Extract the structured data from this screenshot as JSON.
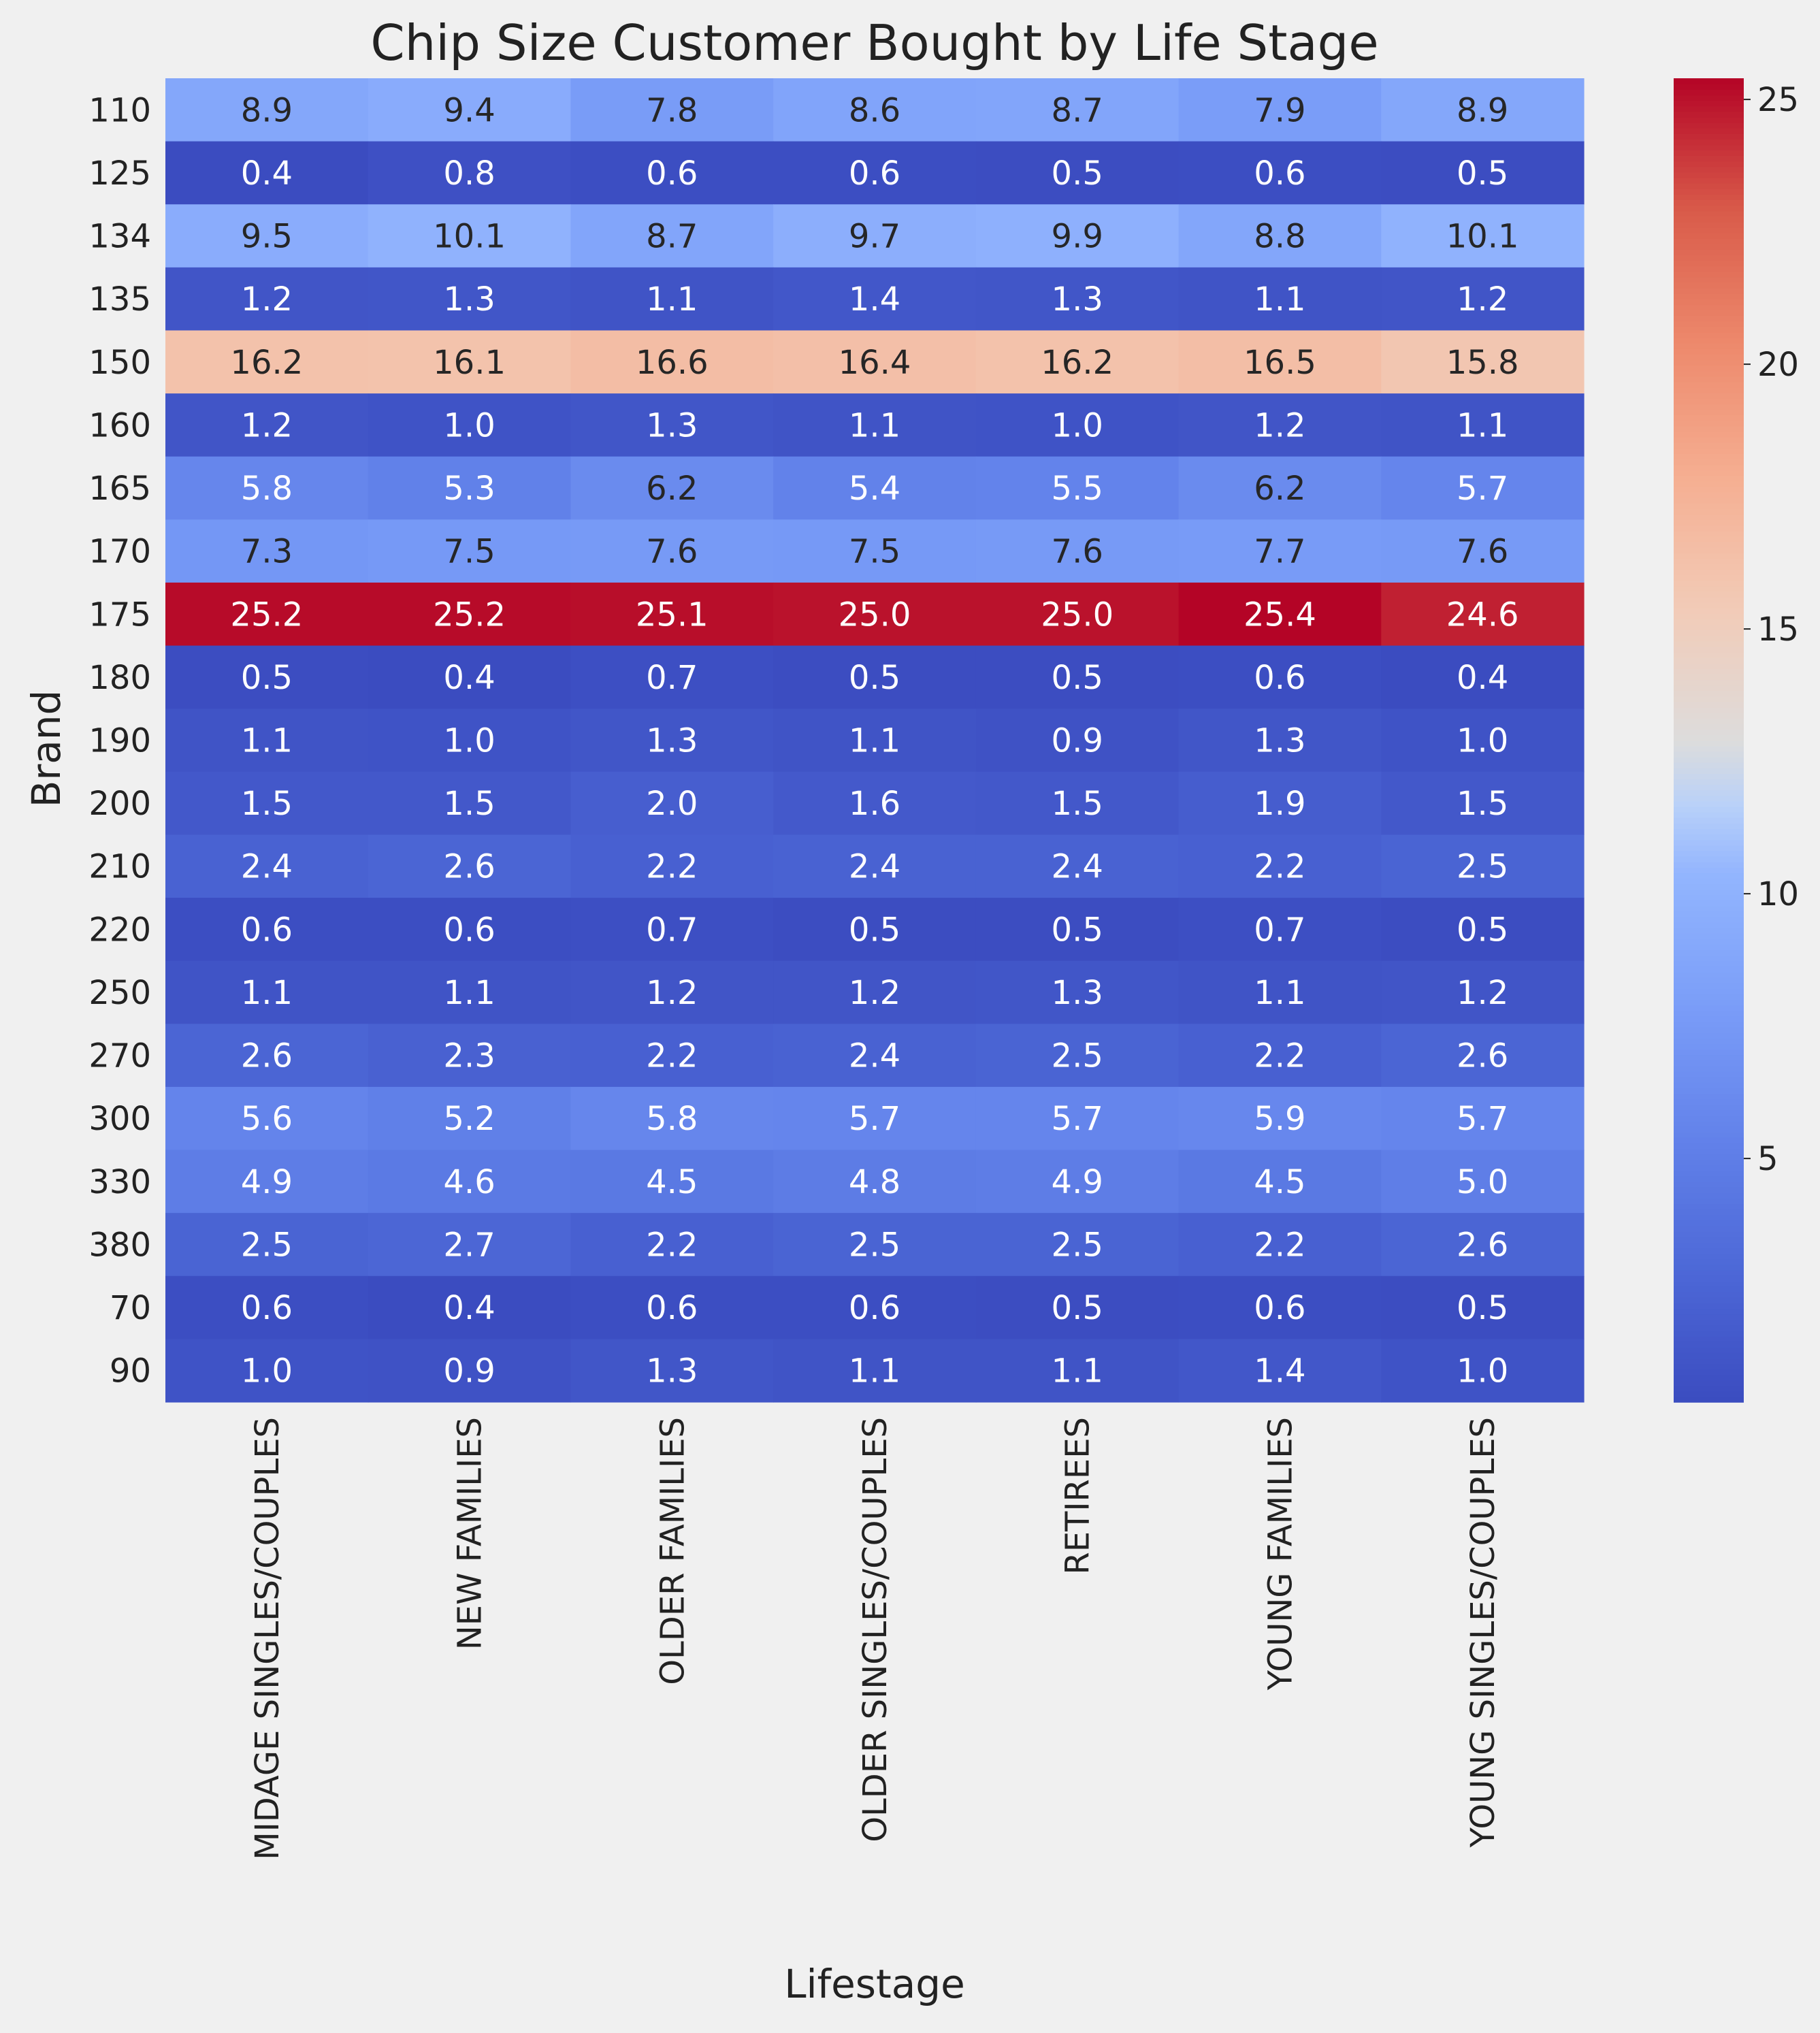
{
  "chart_data": {
    "type": "heatmap",
    "title": "Chip Size Customer Bought by Life Stage",
    "xlabel": "Lifestage",
    "ylabel": "Brand",
    "colormap": "coolwarm",
    "color_range": [
      0.4,
      25.4
    ],
    "colorbar_ticks": [
      5,
      10,
      15,
      20,
      25
    ],
    "grid": false,
    "colorbar_position": "right",
    "x_categories": [
      "MIDAGE SINGLES/COUPLES",
      "NEW FAMILIES",
      "OLDER FAMILIES",
      "OLDER SINGLES/COUPLES",
      "RETIREES",
      "YOUNG FAMILIES",
      "YOUNG SINGLES/COUPLES"
    ],
    "y_categories": [
      "110",
      "125",
      "134",
      "135",
      "150",
      "160",
      "165",
      "170",
      "175",
      "180",
      "190",
      "200",
      "210",
      "220",
      "250",
      "270",
      "300",
      "330",
      "380",
      "70",
      "90"
    ],
    "values": [
      [
        8.9,
        9.4,
        7.8,
        8.6,
        8.7,
        7.9,
        8.9
      ],
      [
        0.4,
        0.8,
        0.6,
        0.6,
        0.5,
        0.6,
        0.5
      ],
      [
        9.5,
        10.1,
        8.7,
        9.7,
        9.9,
        8.8,
        10.1
      ],
      [
        1.2,
        1.3,
        1.1,
        1.4,
        1.3,
        1.1,
        1.2
      ],
      [
        16.2,
        16.1,
        16.6,
        16.4,
        16.2,
        16.5,
        15.8
      ],
      [
        1.2,
        1.0,
        1.3,
        1.1,
        1.0,
        1.2,
        1.1
      ],
      [
        5.8,
        5.3,
        6.2,
        5.4,
        5.5,
        6.2,
        5.7
      ],
      [
        7.3,
        7.5,
        7.6,
        7.5,
        7.6,
        7.7,
        7.6
      ],
      [
        25.2,
        25.2,
        25.1,
        25.0,
        25.0,
        25.4,
        24.6
      ],
      [
        0.5,
        0.4,
        0.7,
        0.5,
        0.5,
        0.6,
        0.4
      ],
      [
        1.1,
        1.0,
        1.3,
        1.1,
        0.9,
        1.3,
        1.0
      ],
      [
        1.5,
        1.5,
        2.0,
        1.6,
        1.5,
        1.9,
        1.5
      ],
      [
        2.4,
        2.6,
        2.2,
        2.4,
        2.4,
        2.2,
        2.5
      ],
      [
        0.6,
        0.6,
        0.7,
        0.5,
        0.5,
        0.7,
        0.5
      ],
      [
        1.1,
        1.1,
        1.2,
        1.2,
        1.3,
        1.1,
        1.2
      ],
      [
        2.6,
        2.3,
        2.2,
        2.4,
        2.5,
        2.2,
        2.6
      ],
      [
        5.6,
        5.2,
        5.8,
        5.7,
        5.7,
        5.9,
        5.7
      ],
      [
        4.9,
        4.6,
        4.5,
        4.8,
        4.9,
        4.5,
        5.0
      ],
      [
        2.5,
        2.7,
        2.2,
        2.5,
        2.5,
        2.2,
        2.6
      ],
      [
        0.6,
        0.4,
        0.6,
        0.6,
        0.5,
        0.6,
        0.5
      ],
      [
        1.0,
        0.9,
        1.3,
        1.1,
        1.1,
        1.4,
        1.0
      ]
    ]
  }
}
